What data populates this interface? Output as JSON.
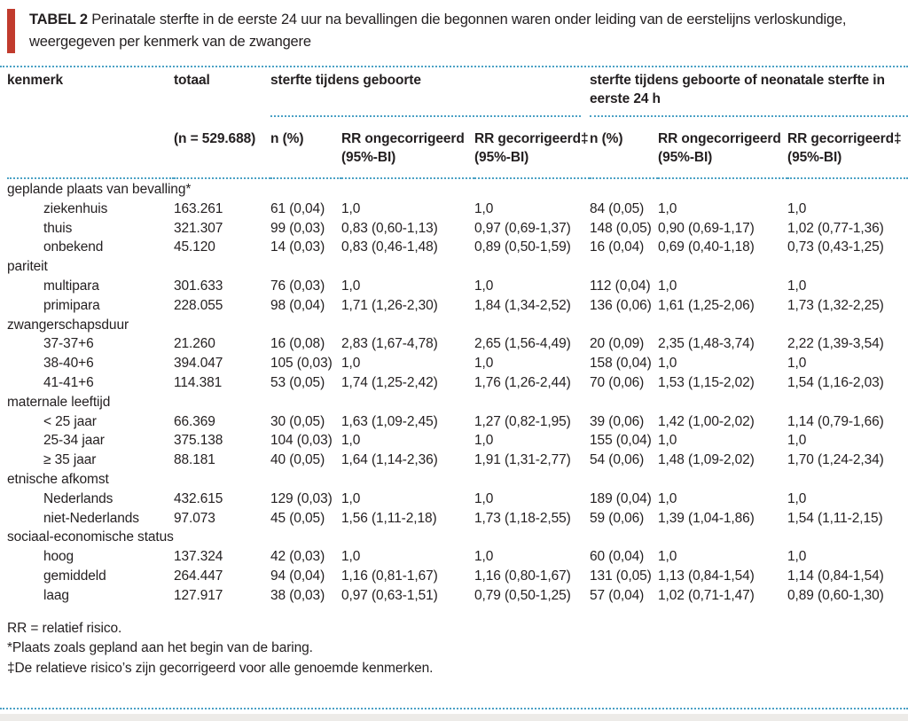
{
  "colors": {
    "accent_red": "#c13b2d",
    "rule_blue": "#4ba1c5",
    "text_ink": "#231f20"
  },
  "title": {
    "label": "TABEL 2",
    "text": "Perinatale sterfte in de eerste 24 uur na bevallingen die begonnen waren onder leiding van de eerstelijns verloskundige, weergegeven per kenmerk van de zwangere"
  },
  "table": {
    "headers": {
      "kenmerk": "kenmerk",
      "totaal": "totaal",
      "totaal_n": "(n = 529.688)",
      "group1": "sterfte tijdens geboorte",
      "group2": "sterfte tijdens geboorte of neonatale sterfte in eerste 24 h"
    },
    "sub_headers": {
      "n": "n (%)",
      "rr_uncorrected": "RR ongecorrigeerd\n(95%-BI)",
      "rr_corrected": "RR gecorrigeerd‡\n(95%-BI)"
    },
    "sections": [
      {
        "label": "geplande plaats van bevalling*",
        "rows": [
          {
            "kenmerk": "ziekenhuis",
            "totaal": "163.261",
            "g1_n": "61 (0,04)",
            "g1_rr_u": "1,0",
            "g1_rr_c": "1,0",
            "g2_n": "84 (0,05)",
            "g2_rr_u": "1,0",
            "g2_rr_c": "1,0"
          },
          {
            "kenmerk": "thuis",
            "totaal": "321.307",
            "g1_n": "99 (0,03)",
            "g1_rr_u": "0,83 (0,60-1,13)",
            "g1_rr_c": "0,97 (0,69-1,37)",
            "g2_n": "148 (0,05)",
            "g2_rr_u": "0,90 (0,69-1,17)",
            "g2_rr_c": "1,02 (0,77-1,36)"
          },
          {
            "kenmerk": "onbekend",
            "totaal": "45.120",
            "g1_n": "14 (0,03)",
            "g1_rr_u": "0,83 (0,46-1,48)",
            "g1_rr_c": "0,89 (0,50-1,59)",
            "g2_n": "16 (0,04)",
            "g2_rr_u": "0,69 (0,40-1,18)",
            "g2_rr_c": "0,73 (0,43-1,25)"
          }
        ]
      },
      {
        "label": "pariteit",
        "rows": [
          {
            "kenmerk": "multipara",
            "totaal": "301.633",
            "g1_n": "76 (0,03)",
            "g1_rr_u": "1,0",
            "g1_rr_c": "1,0",
            "g2_n": "112 (0,04)",
            "g2_rr_u": "1,0",
            "g2_rr_c": "1,0"
          },
          {
            "kenmerk": "primipara",
            "totaal": "228.055",
            "g1_n": "98 (0,04)",
            "g1_rr_u": "1,71 (1,26-2,30)",
            "g1_rr_c": "1,84 (1,34-2,52)",
            "g2_n": "136 (0,06)",
            "g2_rr_u": "1,61 (1,25-2,06)",
            "g2_rr_c": "1,73 (1,32-2,25)"
          }
        ]
      },
      {
        "label": "zwangerschapsduur",
        "rows": [
          {
            "kenmerk": "37-37+6",
            "totaal": "21.260",
            "g1_n": "16 (0,08)",
            "g1_rr_u": "2,83 (1,67-4,78)",
            "g1_rr_c": "2,65 (1,56-4,49)",
            "g2_n": "20 (0,09)",
            "g2_rr_u": "2,35 (1,48-3,74)",
            "g2_rr_c": "2,22 (1,39-3,54)"
          },
          {
            "kenmerk": "38-40+6",
            "totaal": "394.047",
            "g1_n": "105 (0,03)",
            "g1_rr_u": "1,0",
            "g1_rr_c": "1,0",
            "g2_n": "158 (0,04)",
            "g2_rr_u": "1,0",
            "g2_rr_c": "1,0"
          },
          {
            "kenmerk": "41-41+6",
            "totaal": "114.381",
            "g1_n": "53 (0,05)",
            "g1_rr_u": "1,74 (1,25-2,42)",
            "g1_rr_c": "1,76 (1,26-2,44)",
            "g2_n": "70 (0,06)",
            "g2_rr_u": "1,53 (1,15-2,02)",
            "g2_rr_c": "1,54 (1,16-2,03)"
          }
        ]
      },
      {
        "label": "maternale leeftijd",
        "rows": [
          {
            "kenmerk": "< 25 jaar",
            "totaal": "66.369",
            "g1_n": "30 (0,05)",
            "g1_rr_u": "1,63 (1,09-2,45)",
            "g1_rr_c": "1,27 (0,82-1,95)",
            "g2_n": "39 (0,06)",
            "g2_rr_u": "1,42 (1,00-2,02)",
            "g2_rr_c": "1,14 (0,79-1,66)"
          },
          {
            "kenmerk": "25-34 jaar",
            "totaal": "375.138",
            "g1_n": "104 (0,03)",
            "g1_rr_u": "1,0",
            "g1_rr_c": "1,0",
            "g2_n": "155 (0,04)",
            "g2_rr_u": "1,0",
            "g2_rr_c": "1,0"
          },
          {
            "kenmerk": "≥ 35 jaar",
            "totaal": "88.181",
            "g1_n": "40 (0,05)",
            "g1_rr_u": "1,64 (1,14-2,36)",
            "g1_rr_c": "1,91 (1,31-2,77)",
            "g2_n": "54 (0,06)",
            "g2_rr_u": "1,48 (1,09-2,02)",
            "g2_rr_c": "1,70 (1,24-2,34)"
          }
        ]
      },
      {
        "label": "etnische afkomst",
        "rows": [
          {
            "kenmerk": "Nederlands",
            "totaal": "432.615",
            "g1_n": "129 (0,03)",
            "g1_rr_u": "1,0",
            "g1_rr_c": "1,0",
            "g2_n": "189 (0,04)",
            "g2_rr_u": "1,0",
            "g2_rr_c": "1,0"
          },
          {
            "kenmerk": "niet-Nederlands",
            "totaal": "97.073",
            "g1_n": "45 (0,05)",
            "g1_rr_u": "1,56 (1,11-2,18)",
            "g1_rr_c": "1,73 (1,18-2,55)",
            "g2_n": "59 (0,06)",
            "g2_rr_u": "1,39 (1,04-1,86)",
            "g2_rr_c": "1,54 (1,11-2,15)"
          }
        ]
      },
      {
        "label": "sociaal-economische status",
        "rows": [
          {
            "kenmerk": "hoog",
            "totaal": "137.324",
            "g1_n": "42 (0,03)",
            "g1_rr_u": "1,0",
            "g1_rr_c": "1,0",
            "g2_n": "60 (0,04)",
            "g2_rr_u": "1,0",
            "g2_rr_c": "1,0"
          },
          {
            "kenmerk": "gemiddeld",
            "totaal": "264.447",
            "g1_n": "94 (0,04)",
            "g1_rr_u": "1,16 (0,81-1,67)",
            "g1_rr_c": "1,16 (0,80-1,67)",
            "g2_n": "131 (0,05)",
            "g2_rr_u": "1,13 (0,84-1,54)",
            "g2_rr_c": "1,14 (0,84-1,54)"
          },
          {
            "kenmerk": "laag",
            "totaal": "127.917",
            "g1_n": "38 (0,03)",
            "g1_rr_u": "0,97 (0,63-1,51)",
            "g1_rr_c": "0,79 (0,50-1,25)",
            "g2_n": "57 (0,04)",
            "g2_rr_u": "1,02 (0,71-1,47)",
            "g2_rr_c": "0,89 (0,60-1,30)"
          }
        ]
      }
    ],
    "footnotes": [
      "RR = relatief risico.",
      "*Plaats zoals gepland aan het begin van de baring.",
      "‡De relatieve risico’s zijn gecorrigeerd voor alle genoemde kenmerken."
    ]
  }
}
